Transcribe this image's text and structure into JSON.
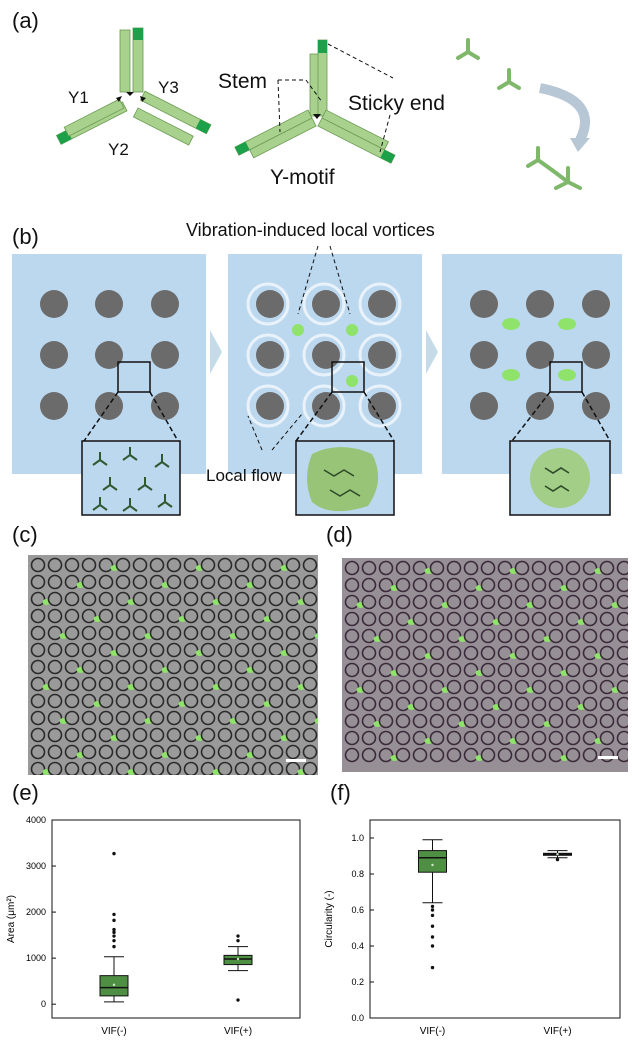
{
  "panels": {
    "a": {
      "label": "(a)",
      "strands": [
        "Y1",
        "Y2",
        "Y3"
      ],
      "stem": "Stem",
      "sticky_end": "Sticky end",
      "y_motif": "Y-motif"
    },
    "b": {
      "label": "(b)",
      "vortices": "Vibration-induced local vortices",
      "local_flow": "Local flow"
    },
    "c": {
      "label": "(c)"
    },
    "d": {
      "label": "(d)"
    },
    "e": {
      "label": "(e)"
    },
    "f": {
      "label": "(f)"
    }
  },
  "colors": {
    "light_green": "#a9d18e",
    "dark_green": "#1ca04a",
    "panel_blue": "#bcd8ef",
    "pillar_grey": "#6b6b6b",
    "droplet_green": "#8fe36b",
    "box_green": "#4f8f43"
  },
  "chart_data": [
    {
      "type": "box",
      "panel": "e",
      "ylabel": "Area (μm²)",
      "categories": [
        "VIF(-)",
        "VIF(+)"
      ],
      "ylim": [
        -300,
        4000
      ],
      "yticks": [
        0,
        1000,
        2000,
        3000,
        4000
      ],
      "boxes": [
        {
          "name": "VIF(-)",
          "whisker_low": 50,
          "q1": 180,
          "median": 360,
          "q3": 620,
          "whisker_high": 1030,
          "mean": 420,
          "outliers": [
            1250,
            1380,
            1480,
            1560,
            1620,
            1820,
            1950,
            3270
          ]
        },
        {
          "name": "VIF(+)",
          "whisker_low": 730,
          "q1": 860,
          "median": 980,
          "q3": 1060,
          "whisker_high": 1250,
          "mean": 980,
          "outliers": [
            90,
            1380,
            1480
          ]
        }
      ]
    },
    {
      "type": "box",
      "panel": "f",
      "ylabel": "Circularity (-)",
      "categories": [
        "VIF(-)",
        "VIF(+)"
      ],
      "ylim": [
        0,
        1.1
      ],
      "yticks": [
        0.0,
        0.2,
        0.4,
        0.6,
        0.8,
        1.0
      ],
      "boxes": [
        {
          "name": "VIF(-)",
          "whisker_low": 0.64,
          "q1": 0.81,
          "median": 0.89,
          "q3": 0.93,
          "whisker_high": 0.99,
          "mean": 0.85,
          "outliers": [
            0.28,
            0.4,
            0.45,
            0.51,
            0.57,
            0.6,
            0.62
          ]
        },
        {
          "name": "VIF(+)",
          "whisker_low": 0.89,
          "q1": 0.905,
          "median": 0.91,
          "q3": 0.915,
          "whisker_high": 0.93,
          "mean": 0.91,
          "outliers": [
            0.88
          ]
        }
      ]
    }
  ]
}
